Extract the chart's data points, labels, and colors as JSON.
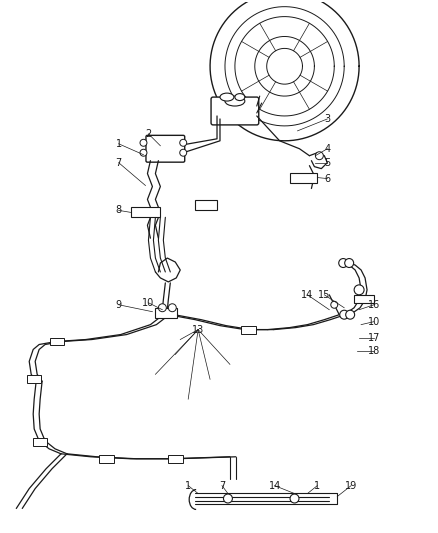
{
  "bg_color": "#ffffff",
  "line_color": "#1a1a1a",
  "label_color": "#1a1a1a",
  "fig_width": 4.38,
  "fig_height": 5.33,
  "dpi": 100
}
